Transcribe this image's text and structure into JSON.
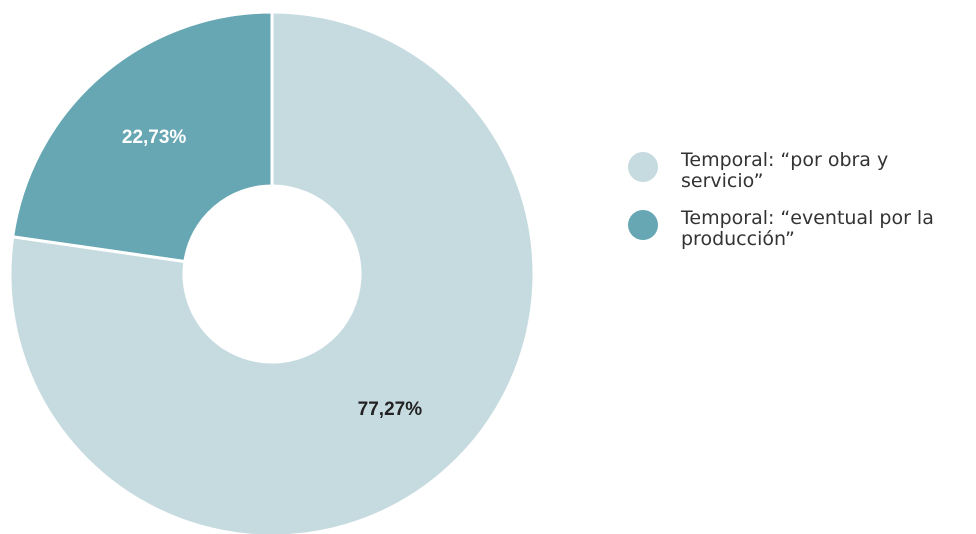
{
  "chart_data": {
    "type": "pie",
    "variant": "donut",
    "title": "",
    "slices": [
      {
        "label": "Temporal: “por obra y servicio”",
        "value": 77.27,
        "value_label": "77,27%",
        "color": "#c6dbe0",
        "label_color": "#222222"
      },
      {
        "label": "Temporal: “eventual por la producción”",
        "value": 22.73,
        "value_label": "22,73%",
        "color": "#66a7b3",
        "label_color": "#ffffff"
      }
    ],
    "legend_position": "right",
    "start_angle": "12 o'clock",
    "direction": "clockwise"
  }
}
